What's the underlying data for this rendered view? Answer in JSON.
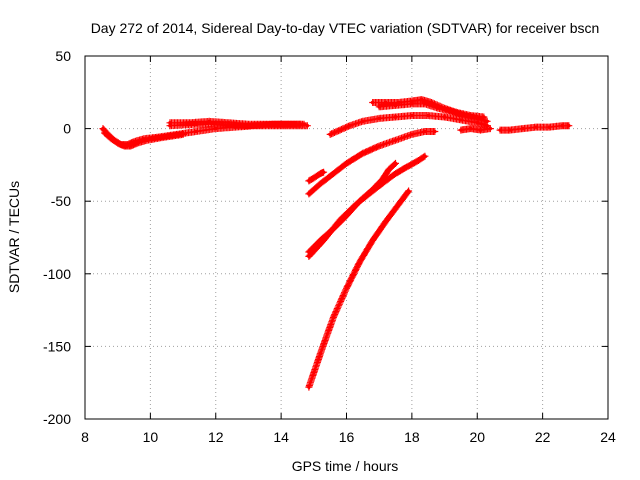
{
  "chart_data": {
    "type": "scatter",
    "title": "Day 272 of 2014, Sidereal Day-to-day VTEC variation (SDTVAR) for receiver bscn",
    "xlabel": "GPS time / hours",
    "ylabel": "SDTVAR / TECUs",
    "xlim": [
      8,
      24
    ],
    "ylim": [
      -200,
      50
    ],
    "xticks": [
      8,
      10,
      12,
      14,
      16,
      18,
      20,
      22,
      24
    ],
    "yticks": [
      -200,
      -150,
      -100,
      -50,
      0,
      50
    ],
    "grid": true,
    "marker": "plus",
    "color": "#ff0000",
    "series": [
      {
        "name": "arc-1",
        "points": [
          [
            8.55,
            0
          ],
          [
            8.7,
            -4
          ],
          [
            8.9,
            -8
          ],
          [
            9.1,
            -11
          ],
          [
            9.3,
            -11
          ],
          [
            9.5,
            -9
          ],
          [
            9.8,
            -7
          ],
          [
            10.2,
            -6
          ],
          [
            10.8,
            -4
          ],
          [
            11.4,
            -2
          ],
          [
            12.0,
            0
          ],
          [
            12.6,
            1
          ],
          [
            13.2,
            2
          ],
          [
            13.8,
            2
          ],
          [
            14.2,
            2
          ],
          [
            14.8,
            2
          ]
        ]
      },
      {
        "name": "arc-2",
        "points": [
          [
            8.6,
            -3
          ],
          [
            8.8,
            -7
          ],
          [
            9.0,
            -10
          ],
          [
            9.2,
            -12
          ],
          [
            9.4,
            -12
          ],
          [
            9.6,
            -10
          ],
          [
            9.9,
            -8
          ],
          [
            10.4,
            -6
          ],
          [
            11.0,
            -4
          ]
        ]
      },
      {
        "name": "arc-3",
        "points": [
          [
            10.6,
            4
          ],
          [
            11.2,
            4
          ],
          [
            11.8,
            5
          ],
          [
            12.4,
            4
          ],
          [
            13.0,
            3
          ],
          [
            13.6,
            3
          ],
          [
            14.2,
            3
          ],
          [
            14.7,
            3
          ]
        ]
      },
      {
        "name": "arc-4",
        "points": [
          [
            10.6,
            2
          ],
          [
            11.4,
            3
          ],
          [
            12.2,
            3
          ],
          [
            13.0,
            2
          ],
          [
            13.8,
            3
          ],
          [
            14.6,
            3
          ]
        ]
      },
      {
        "name": "arc-5",
        "points": [
          [
            15.5,
            -4
          ],
          [
            15.8,
            -1
          ],
          [
            16.1,
            2
          ],
          [
            16.5,
            5
          ],
          [
            17.0,
            7
          ],
          [
            17.5,
            8
          ],
          [
            18.0,
            9
          ],
          [
            18.5,
            9
          ],
          [
            19.0,
            8
          ],
          [
            19.5,
            6
          ],
          [
            20.0,
            4
          ],
          [
            20.3,
            2
          ]
        ]
      },
      {
        "name": "arc-6",
        "points": [
          [
            16.8,
            18
          ],
          [
            17.2,
            18
          ],
          [
            17.6,
            18
          ],
          [
            18.0,
            19
          ],
          [
            18.3,
            20
          ],
          [
            18.6,
            18
          ],
          [
            19.0,
            14
          ],
          [
            19.4,
            11
          ],
          [
            19.8,
            9
          ],
          [
            20.2,
            8
          ]
        ]
      },
      {
        "name": "arc-7",
        "points": [
          [
            17.0,
            15
          ],
          [
            17.5,
            16
          ],
          [
            18.0,
            17
          ],
          [
            18.4,
            17
          ],
          [
            18.8,
            14
          ],
          [
            19.2,
            12
          ],
          [
            19.6,
            9
          ],
          [
            20.0,
            7
          ],
          [
            20.3,
            5
          ]
        ]
      },
      {
        "name": "arc-8",
        "points": [
          [
            19.5,
            -1
          ],
          [
            19.8,
            0
          ],
          [
            20.1,
            -1
          ],
          [
            20.4,
            0
          ]
        ]
      },
      {
        "name": "arc-9",
        "points": [
          [
            20.7,
            -1
          ],
          [
            21.0,
            -1
          ],
          [
            21.4,
            0
          ],
          [
            21.8,
            1
          ],
          [
            22.2,
            1
          ],
          [
            22.6,
            2
          ],
          [
            22.8,
            2
          ]
        ]
      },
      {
        "name": "arc-10",
        "points": [
          [
            15.3,
            -30
          ],
          [
            15.2,
            -31
          ],
          [
            15.0,
            -34
          ],
          [
            14.85,
            -36
          ]
        ]
      },
      {
        "name": "arc-11",
        "points": [
          [
            14.85,
            -45
          ],
          [
            15.2,
            -38
          ],
          [
            15.6,
            -31
          ],
          [
            16.0,
            -24
          ],
          [
            16.5,
            -17
          ],
          [
            17.0,
            -12
          ],
          [
            17.5,
            -8
          ],
          [
            18.0,
            -4
          ],
          [
            18.4,
            -2
          ],
          [
            18.7,
            -2
          ]
        ]
      },
      {
        "name": "arc-12",
        "points": [
          [
            14.85,
            -88
          ],
          [
            15.3,
            -77
          ],
          [
            15.8,
            -63
          ],
          [
            16.3,
            -52
          ],
          [
            16.8,
            -43
          ],
          [
            17.2,
            -36
          ],
          [
            17.5,
            -31
          ],
          [
            17.8,
            -27
          ],
          [
            18.2,
            -22
          ],
          [
            18.4,
            -19
          ]
        ]
      },
      {
        "name": "arc-13",
        "points": [
          [
            14.85,
            -85
          ],
          [
            15.2,
            -77
          ],
          [
            15.6,
            -69
          ],
          [
            16.0,
            -60
          ],
          [
            16.4,
            -50
          ],
          [
            16.8,
            -42
          ],
          [
            17.1,
            -35
          ],
          [
            17.3,
            -28
          ],
          [
            17.5,
            -24
          ]
        ]
      },
      {
        "name": "arc-14",
        "points": [
          [
            14.85,
            -178
          ],
          [
            15.2,
            -155
          ],
          [
            15.6,
            -130
          ],
          [
            16.0,
            -110
          ],
          [
            16.4,
            -92
          ],
          [
            16.8,
            -77
          ],
          [
            17.2,
            -64
          ],
          [
            17.6,
            -52
          ],
          [
            17.9,
            -43
          ]
        ]
      }
    ]
  }
}
